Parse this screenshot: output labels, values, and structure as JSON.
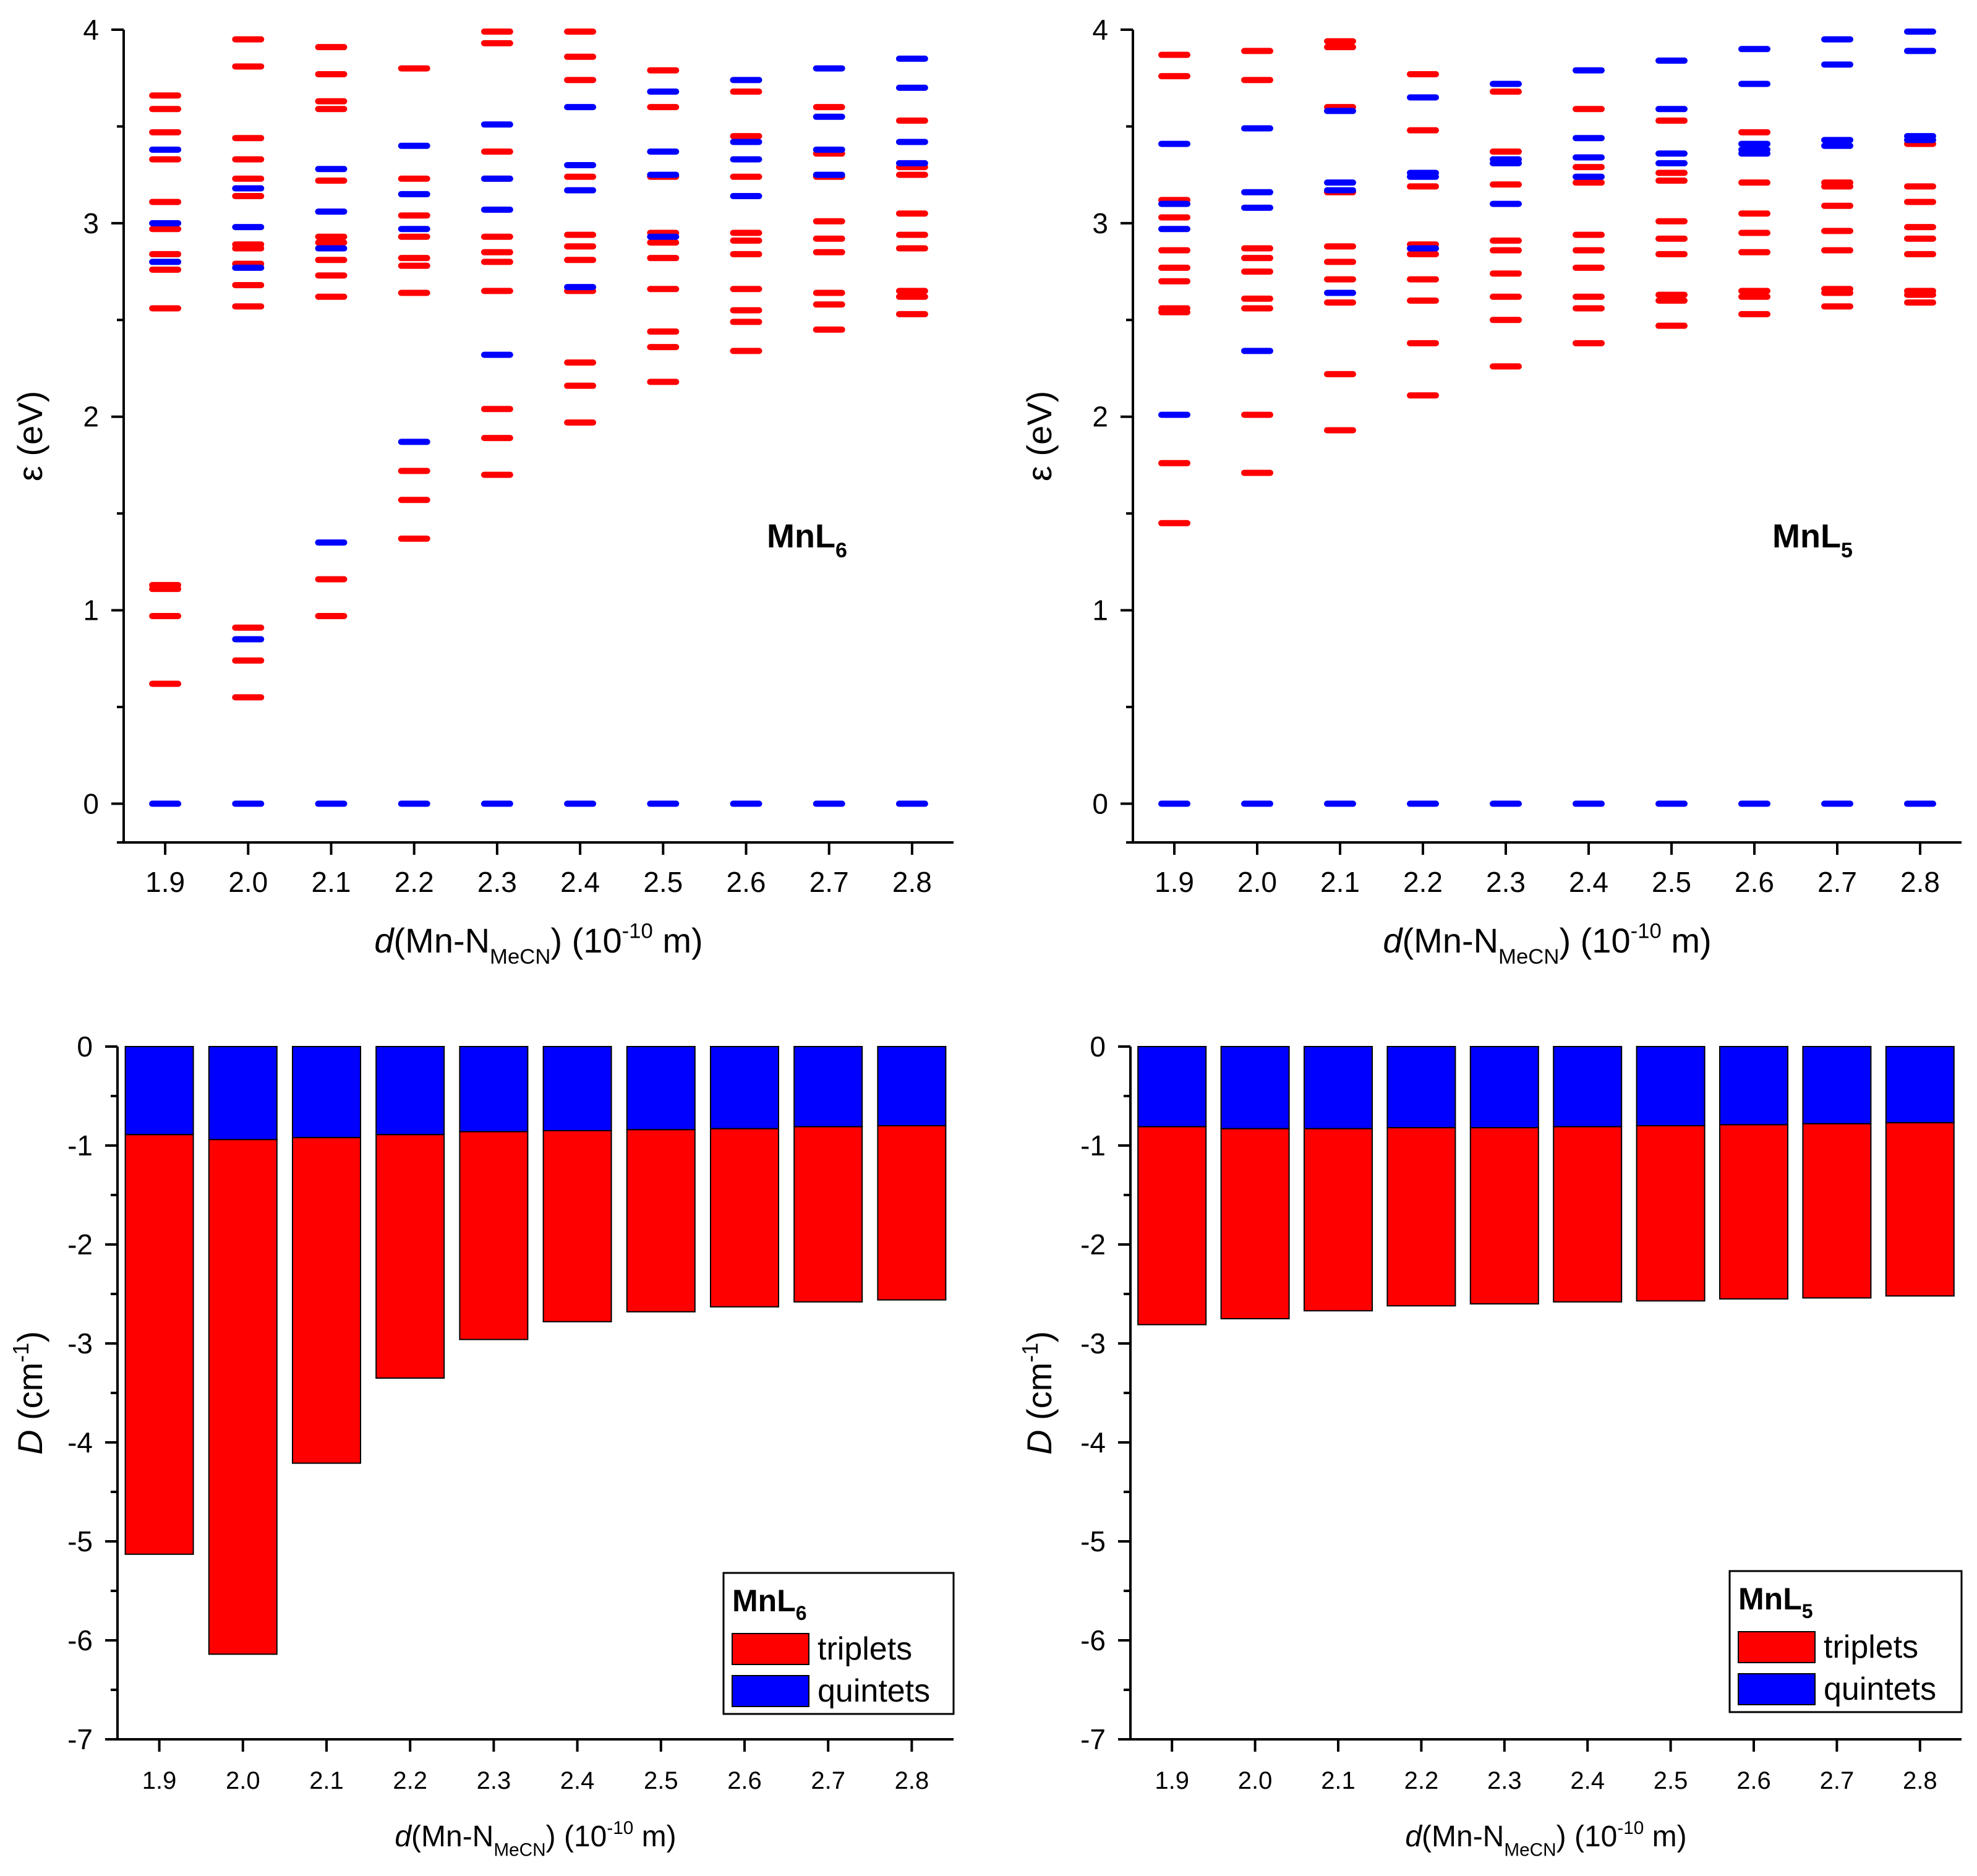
{
  "colors": {
    "triplet": "#ff0000",
    "quintet": "#0000ff",
    "axis": "#000000"
  },
  "chart_data": [
    {
      "id": "top-left",
      "type": "scatter",
      "marker": "horizontal-dash",
      "panel_label": {
        "main": "MnL",
        "sub": "6"
      },
      "xlabel": {
        "italic": "d",
        "main": "(Mn-N",
        "sub": "MeCN",
        "rest": ") (10",
        "sup": "-10",
        "end": " m)"
      },
      "ylabel": {
        "main": "ε (eV)"
      },
      "categories": [
        "1.9",
        "2.0",
        "2.1",
        "2.2",
        "2.3",
        "2.4",
        "2.5",
        "2.6",
        "2.7",
        "2.8"
      ],
      "x": [
        1.9,
        2.0,
        2.1,
        2.2,
        2.3,
        2.4,
        2.5,
        2.6,
        2.7,
        2.8
      ],
      "xlim": [
        1.85,
        2.85
      ],
      "ylim": [
        -0.2,
        4.0
      ],
      "yticks": [
        0,
        1,
        2,
        3,
        4
      ],
      "series": [
        {
          "name": "quintets",
          "color": "#0000ff",
          "levels": [
            [
              0,
              2.8,
              3.0,
              3.38
            ],
            [
              0,
              0.85,
              2.77,
              2.98,
              3.18
            ],
            [
              0,
              1.35,
              2.87,
              3.06,
              3.28
            ],
            [
              0,
              1.87,
              2.97,
              3.15,
              3.4
            ],
            [
              0,
              2.32,
              3.07,
              3.23,
              3.51
            ],
            [
              0,
              2.67,
              3.17,
              3.3,
              3.6
            ],
            [
              0,
              2.93,
              3.25,
              3.37,
              3.68
            ],
            [
              0,
              3.14,
              3.33,
              3.42,
              3.74
            ],
            [
              0,
              3.25,
              3.38,
              3.55,
              3.8
            ],
            [
              0,
              3.31,
              3.42,
              3.7,
              3.85
            ]
          ]
        },
        {
          "name": "triplets",
          "color": "#ff0000",
          "levels": [
            [
              0.62,
              0.97,
              1.11,
              1.13,
              2.56,
              2.76,
              2.84,
              2.97,
              3.11,
              3.33,
              3.47,
              3.59,
              3.66
            ],
            [
              0.55,
              0.74,
              0.91,
              2.57,
              2.68,
              2.79,
              2.87,
              2.89,
              3.14,
              3.23,
              3.33,
              3.44,
              3.81,
              3.95
            ],
            [
              0.97,
              1.16,
              2.62,
              2.73,
              2.81,
              2.9,
              2.93,
              3.22,
              3.59,
              3.63,
              3.77,
              3.91
            ],
            [
              1.37,
              1.57,
              1.72,
              2.64,
              2.78,
              2.82,
              2.93,
              3.04,
              3.23,
              3.8
            ],
            [
              1.7,
              1.89,
              2.04,
              2.65,
              2.8,
              2.85,
              2.93,
              3.23,
              3.37,
              3.93,
              3.99
            ],
            [
              1.97,
              2.16,
              2.28,
              2.65,
              2.81,
              2.88,
              2.94,
              3.24,
              3.74,
              3.86,
              3.99
            ],
            [
              2.18,
              2.36,
              2.44,
              2.66,
              2.82,
              2.9,
              2.95,
              3.24,
              3.6,
              3.79
            ],
            [
              2.34,
              2.49,
              2.55,
              2.66,
              2.84,
              2.91,
              2.95,
              3.24,
              3.45,
              3.68
            ],
            [
              2.45,
              2.58,
              2.64,
              2.85,
              2.92,
              3.01,
              3.24,
              3.36,
              3.6
            ],
            [
              2.53,
              2.62,
              2.65,
              2.87,
              2.94,
              3.05,
              3.25,
              3.29,
              3.53
            ]
          ]
        }
      ]
    },
    {
      "id": "top-right",
      "type": "scatter",
      "marker": "horizontal-dash",
      "panel_label": {
        "main": "MnL",
        "sub": "5"
      },
      "xlabel": {
        "italic": "d",
        "main": "(Mn-N",
        "sub": "MeCN",
        "rest": ") (10",
        "sup": "-10",
        "end": " m)"
      },
      "ylabel": {
        "main": "ε (eV)"
      },
      "categories": [
        "1.9",
        "2.0",
        "2.1",
        "2.2",
        "2.3",
        "2.4",
        "2.5",
        "2.6",
        "2.7",
        "2.8"
      ],
      "x": [
        1.9,
        2.0,
        2.1,
        2.2,
        2.3,
        2.4,
        2.5,
        2.6,
        2.7,
        2.8
      ],
      "xlim": [
        1.85,
        2.85
      ],
      "ylim": [
        -0.2,
        4.0
      ],
      "yticks": [
        0,
        1,
        2,
        3,
        4
      ],
      "series": [
        {
          "name": "quintets",
          "color": "#0000ff",
          "levels": [
            [
              0,
              2.01,
              2.97,
              3.1,
              3.41
            ],
            [
              0,
              2.34,
              3.08,
              3.16,
              3.49
            ],
            [
              0,
              2.64,
              3.17,
              3.21,
              3.58
            ],
            [
              0,
              2.87,
              3.24,
              3.26,
              3.65
            ],
            [
              0,
              3.1,
              3.31,
              3.33,
              3.72
            ],
            [
              0,
              3.24,
              3.34,
              3.44,
              3.79
            ],
            [
              0,
              3.31,
              3.36,
              3.59,
              3.84
            ],
            [
              0,
              3.36,
              3.38,
              3.41,
              3.72,
              3.9
            ],
            [
              0,
              3.4,
              3.43,
              3.82,
              3.95
            ],
            [
              0,
              3.43,
              3.45,
              3.89,
              3.99
            ]
          ]
        },
        {
          "name": "triplets",
          "color": "#ff0000",
          "levels": [
            [
              1.45,
              1.76,
              2.54,
              2.56,
              2.7,
              2.77,
              2.86,
              3.03,
              3.12,
              3.76,
              3.87
            ],
            [
              1.71,
              2.01,
              2.56,
              2.61,
              2.75,
              2.82,
              2.87,
              3.74,
              3.89
            ],
            [
              1.93,
              2.22,
              2.59,
              2.71,
              2.8,
              2.88,
              3.16,
              3.6,
              3.91,
              3.94
            ],
            [
              2.11,
              2.38,
              2.6,
              2.71,
              2.84,
              2.89,
              3.19,
              3.48,
              3.77
            ],
            [
              2.26,
              2.5,
              2.62,
              2.74,
              2.86,
              2.91,
              3.2,
              3.37,
              3.68
            ],
            [
              2.38,
              2.56,
              2.62,
              2.77,
              2.86,
              2.94,
              3.21,
              3.29,
              3.59
            ],
            [
              2.47,
              2.6,
              2.63,
              2.84,
              2.92,
              3.01,
              3.22,
              3.26,
              3.53
            ],
            [
              2.53,
              2.62,
              2.65,
              2.85,
              2.95,
              3.05,
              3.21,
              3.47
            ],
            [
              2.57,
              2.64,
              2.66,
              2.86,
              2.96,
              3.09,
              3.19,
              3.21
            ],
            [
              2.59,
              2.63,
              2.65,
              2.84,
              2.92,
              2.98,
              3.11,
              3.19,
              3.41
            ]
          ]
        }
      ]
    },
    {
      "id": "bottom-left",
      "type": "bar",
      "stacked": true,
      "xlabel": {
        "italic": "d",
        "main": "(Mn-N",
        "sub": "MeCN",
        "rest": ") (10",
        "sup": "-10",
        "end": " m)"
      },
      "ylabel": {
        "italic": "D",
        "main": " (cm",
        "sup": "-1",
        "end": ")"
      },
      "categories": [
        "1.9",
        "2.0",
        "2.1",
        "2.2",
        "2.3",
        "2.4",
        "2.5",
        "2.6",
        "2.7",
        "2.8"
      ],
      "xlim": [
        1.85,
        2.85
      ],
      "ylim": [
        -7,
        0
      ],
      "yticks": [
        0,
        -1,
        -2,
        -3,
        -4,
        -5,
        -6,
        -7
      ],
      "series": [
        {
          "name": "quintets",
          "color": "#0000ff",
          "values": [
            -0.89,
            -0.94,
            -0.92,
            -0.89,
            -0.86,
            -0.85,
            -0.84,
            -0.83,
            -0.81,
            -0.8
          ]
        },
        {
          "name": "triplets",
          "color": "#ff0000",
          "values": [
            -4.24,
            -5.2,
            -3.29,
            -2.46,
            -2.1,
            -1.93,
            -1.84,
            -1.8,
            -1.77,
            -1.76
          ]
        }
      ],
      "legend": {
        "title_main": "MnL",
        "title_sub": "6",
        "items": [
          "triplets",
          "quintets"
        ],
        "position": "bottom-right"
      }
    },
    {
      "id": "bottom-right",
      "type": "bar",
      "stacked": true,
      "xlabel": {
        "italic": "d",
        "main": "(Mn-N",
        "sub": "MeCN",
        "rest": ") (10",
        "sup": "-10",
        "end": " m)"
      },
      "ylabel": {
        "italic": "D",
        "main": " (cm",
        "sup": "-1",
        "end": ")"
      },
      "categories": [
        "1.9",
        "2.0",
        "2.1",
        "2.2",
        "2.3",
        "2.4",
        "2.5",
        "2.6",
        "2.7",
        "2.8"
      ],
      "xlim": [
        1.85,
        2.85
      ],
      "ylim": [
        -7,
        0
      ],
      "yticks": [
        0,
        -1,
        -2,
        -3,
        -4,
        -5,
        -6,
        -7
      ],
      "series": [
        {
          "name": "quintets",
          "color": "#0000ff",
          "values": [
            -0.81,
            -0.83,
            -0.83,
            -0.82,
            -0.82,
            -0.81,
            -0.8,
            -0.79,
            -0.78,
            -0.77
          ]
        },
        {
          "name": "triplets",
          "color": "#ff0000",
          "values": [
            -2.0,
            -1.92,
            -1.84,
            -1.8,
            -1.78,
            -1.77,
            -1.77,
            -1.76,
            -1.76,
            -1.75
          ]
        }
      ],
      "legend": {
        "title_main": "MnL",
        "title_sub": "5",
        "items": [
          "triplets",
          "quintets"
        ],
        "position": "bottom-right"
      }
    }
  ]
}
